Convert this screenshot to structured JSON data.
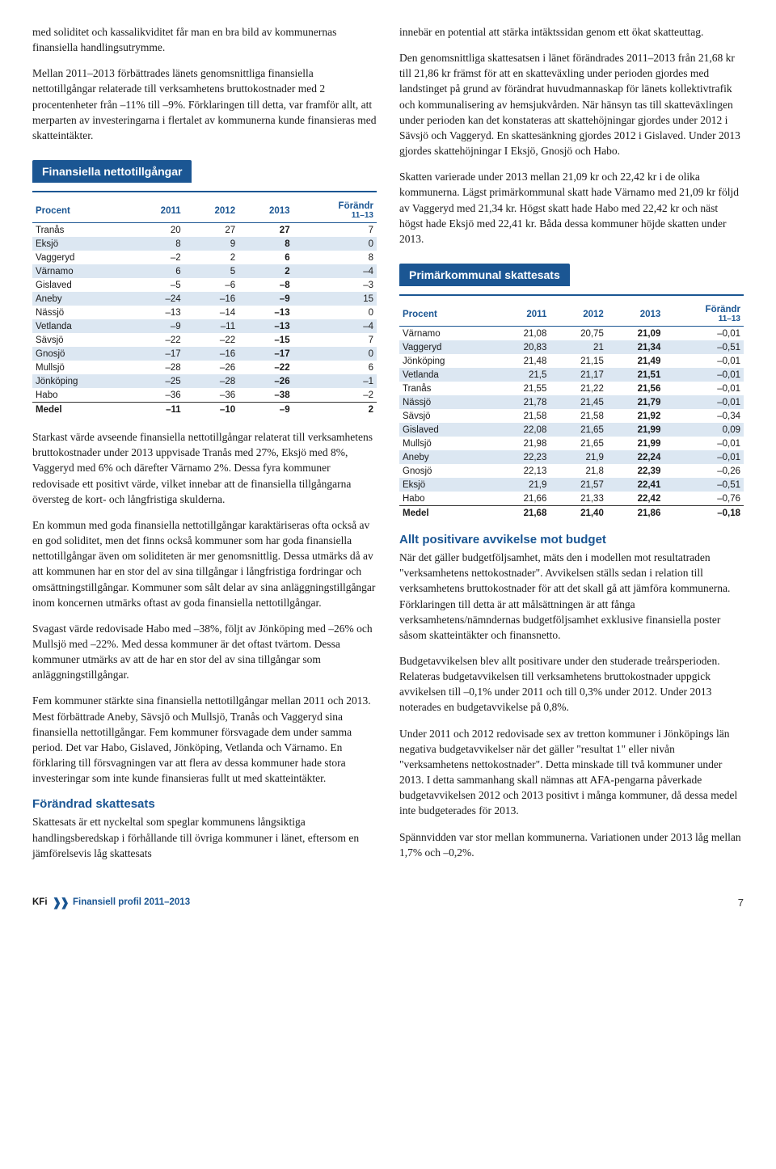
{
  "left": {
    "p1": "med soliditet och kassalikviditet får man en bra bild av kommunernas finansiella handlingsutrymme.",
    "p2": "Mellan 2011–2013 förbättrades länets genomsnittliga finansiella nettotillgångar relaterade till verksamhetens bruttokostnader med 2 procentenheter från –11% till –9%. Förklaringen till detta, var framför allt, att merparten av investeringarna i flertalet av kommunerna kunde finansieras med skatteintäkter.",
    "table1_title": "Finansiella nettotillgångar",
    "table1": {
      "headers": [
        "Procent",
        "2011",
        "2012",
        "2013",
        "Förändr"
      ],
      "subheader": "11–13",
      "rows": [
        {
          "c": [
            "Tranås",
            "20",
            "27",
            "27",
            "7"
          ],
          "alt": false
        },
        {
          "c": [
            "Eksjö",
            "8",
            "9",
            "8",
            "0"
          ],
          "alt": true
        },
        {
          "c": [
            "Vaggeryd",
            "–2",
            "2",
            "6",
            "8"
          ],
          "alt": false
        },
        {
          "c": [
            "Värnamo",
            "6",
            "5",
            "2",
            "–4"
          ],
          "alt": true
        },
        {
          "c": [
            "Gislaved",
            "–5",
            "–6",
            "–8",
            "–3"
          ],
          "alt": false
        },
        {
          "c": [
            "Aneby",
            "–24",
            "–16",
            "–9",
            "15"
          ],
          "alt": true
        },
        {
          "c": [
            "Nässjö",
            "–13",
            "–14",
            "–13",
            "0"
          ],
          "alt": false
        },
        {
          "c": [
            "Vetlanda",
            "–9",
            "–11",
            "–13",
            "–4"
          ],
          "alt": true
        },
        {
          "c": [
            "Sävsjö",
            "–22",
            "–22",
            "–15",
            "7"
          ],
          "alt": false
        },
        {
          "c": [
            "Gnosjö",
            "–17",
            "–16",
            "–17",
            "0"
          ],
          "alt": true
        },
        {
          "c": [
            "Mullsjö",
            "–28",
            "–26",
            "–22",
            "6"
          ],
          "alt": false
        },
        {
          "c": [
            "Jönköping",
            "–25",
            "–28",
            "–26",
            "–1"
          ],
          "alt": true
        },
        {
          "c": [
            "Habo",
            "–36",
            "–36",
            "–38",
            "–2"
          ],
          "alt": false
        }
      ],
      "medel": [
        "Medel",
        "–11",
        "–10",
        "–9",
        "2"
      ]
    },
    "p3": "Starkast värde avseende finansiella nettotillgångar relaterat till verksamhetens bruttokostnader under 2013 uppvisade Tranås med 27%, Eksjö med 8%, Vaggeryd med 6% och därefter Värnamo 2%. Dessa fyra kommuner redovisade ett positivt värde, vilket innebar att de finansiella tillgångarna översteg de kort- och långfristiga skulderna.",
    "p4": "En kommun med goda finansiella nettotillgångar karaktäriseras ofta också av en god soliditet, men det finns också kommuner som har goda finansiella nettotillgångar även om soliditeten är mer genomsnittlig. Dessa utmärks då av att kommunen har en stor del av sina tillgångar i långfristiga fordringar och omsättningstillgångar. Kommuner som sålt delar av sina anläggningstillgångar inom koncernen utmärks oftast av goda finansiella nettotillgångar.",
    "p5": "Svagast värde redovisade Habo med –38%, följt av Jönköping med –26% och Mullsjö med –22%. Med dessa kommuner är det oftast tvärtom. Dessa kommuner utmärks av att de har en stor del av sina tillgångar som anläggningstillgångar.",
    "p6": "Fem kommuner stärkte sina finansiella nettotillgångar mellan 2011 och 2013. Mest förbättrade Aneby, Sävsjö och Mullsjö, Tranås och Vaggeryd sina finansiella nettotillgångar. Fem kommuner försvagade dem under samma period. Det var Habo, Gislaved, Jönköping, Vetlanda och Värnamo. En förklaring till försvagningen var att flera av dessa kommuner hade stora investeringar som inte kunde finansieras fullt ut med skatteintäkter.",
    "sub1_title": "Förändrad skattesats",
    "p7": "Skattesats är ett nyckeltal som speglar kommunens långsiktiga handlingsberedskap i förhållande till övriga kommuner i länet, eftersom en jämförelsevis låg skattesats"
  },
  "right": {
    "p1": "innebär en potential att stärka intäktssidan genom ett ökat skatteuttag.",
    "p2": "Den genomsnittliga skattesatsen i länet förändrades 2011–2013 från 21,68 kr till 21,86 kr främst för att en skatteväxling under perioden gjordes med landstinget på grund av förändrat huvudmannaskap för länets kollektivtrafik och kommunalisering av hemsjukvården. När hänsyn tas till skatteväxlingen under perioden kan det konstateras att skattehöjningar gjordes under 2012 i Sävsjö och Vaggeryd. En skattesänkning gjordes 2012 i Gislaved. Under 2013 gjordes skattehöjningar I Eksjö, Gnosjö och Habo.",
    "p3": "Skatten varierade under 2013 mellan 21,09 kr och 22,42 kr i de olika kommunerna. Lägst primärkommunal skatt hade Värnamo med 21,09 kr följd av Vaggeryd med 21,34 kr. Högst skatt hade Habo med 22,42 kr och näst högst hade Eksjö med 22,41 kr. Båda dessa kommuner höjde skatten under 2013.",
    "table2_title": "Primärkommunal skattesats",
    "table2": {
      "headers": [
        "Procent",
        "2011",
        "2012",
        "2013",
        "Förändr"
      ],
      "subheader": "11–13",
      "rows": [
        {
          "c": [
            "Värnamo",
            "21,08",
            "20,75",
            "21,09",
            "–0,01"
          ],
          "alt": false
        },
        {
          "c": [
            "Vaggeryd",
            "20,83",
            "21",
            "21,34",
            "–0,51"
          ],
          "alt": true
        },
        {
          "c": [
            "Jönköping",
            "21,48",
            "21,15",
            "21,49",
            "–0,01"
          ],
          "alt": false
        },
        {
          "c": [
            "Vetlanda",
            "21,5",
            "21,17",
            "21,51",
            "–0,01"
          ],
          "alt": true
        },
        {
          "c": [
            "Tranås",
            "21,55",
            "21,22",
            "21,56",
            "–0,01"
          ],
          "alt": false
        },
        {
          "c": [
            "Nässjö",
            "21,78",
            "21,45",
            "21,79",
            "–0,01"
          ],
          "alt": true
        },
        {
          "c": [
            "Sävsjö",
            "21,58",
            "21,58",
            "21,92",
            "–0,34"
          ],
          "alt": false
        },
        {
          "c": [
            "Gislaved",
            "22,08",
            "21,65",
            "21,99",
            "0,09"
          ],
          "alt": true
        },
        {
          "c": [
            "Mullsjö",
            "21,98",
            "21,65",
            "21,99",
            "–0,01"
          ],
          "alt": false
        },
        {
          "c": [
            "Aneby",
            "22,23",
            "21,9",
            "22,24",
            "–0,01"
          ],
          "alt": true
        },
        {
          "c": [
            "Gnosjö",
            "22,13",
            "21,8",
            "22,39",
            "–0,26"
          ],
          "alt": false
        },
        {
          "c": [
            "Eksjö",
            "21,9",
            "21,57",
            "22,41",
            "–0,51"
          ],
          "alt": true
        },
        {
          "c": [
            "Habo",
            "21,66",
            "21,33",
            "22,42",
            "–0,76"
          ],
          "alt": false
        }
      ],
      "medel": [
        "Medel",
        "21,68",
        "21,40",
        "21,86",
        "–0,18"
      ]
    },
    "sub2_title": "Allt positivare avvikelse mot budget",
    "p4": "När det gäller budgetföljsamhet, mäts den i modellen mot resultatraden \"verksamhetens nettokostnader\". Avvikelsen ställs sedan i relation till verksamhetens bruttokostnader för att det skall gå att jämföra kommunerna. Förklaringen till detta är att målsättningen är att fånga verksamhetens/nämndernas budgetföljsamhet exklusive finansiella poster såsom skatteintäkter och finansnetto.",
    "p5": "Budgetavvikelsen blev allt positivare under den studerade treårsperioden. Relateras budgetavvikelsen till verksamhetens bruttokostnader uppgick avvikelsen till –0,1% under 2011 och till 0,3% under 2012. Under 2013 noterades en budgetavvikelse på 0,8%.",
    "p6": "Under 2011 och 2012 redovisade sex av tretton kommuner i Jönköpings län negativa budgetavvikelser när det gäller \"resultat 1\" eller nivån \"verksamhetens nettokostnader\". Detta minskade till två kommuner under 2013. I detta sammanhang skall nämnas att AFA-pengarna påverkade budgetavvikelsen 2012 och 2013 positivt i många kommuner, då dessa medel inte budgeterades för 2013.",
    "p7": "Spännvidden var stor mellan kommunerna. Variationen under 2013 låg mellan 1,7% och –0,2%."
  },
  "footer": {
    "kfi": "KFi",
    "title": "Finansiell profil 2011–2013",
    "page": "7"
  },
  "colors": {
    "accent": "#1b5693",
    "rowAlt": "#dce7f2"
  }
}
